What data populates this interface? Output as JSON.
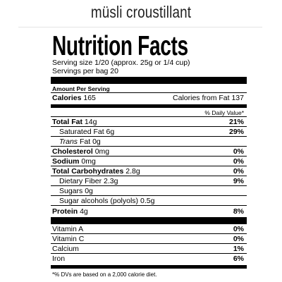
{
  "product": {
    "name": "müsli croustillant"
  },
  "label": {
    "title": "Nutrition Facts",
    "serving_size": "Serving size 1/20 (approx. 25g or 1/4 cup)",
    "servings_per": "Servings per bag 20",
    "amount_per_serving": "Amount Per Serving",
    "calories_label": "Calories",
    "calories_value": "165",
    "calories_from_fat": "Calories from Fat 137",
    "daily_value_header": "% Daily Value*",
    "total_fat": {
      "label": "Total Fat",
      "amount": "14g",
      "dv": "21%"
    },
    "saturated_fat": {
      "label": "Saturated Fat",
      "amount": "6g",
      "dv": "29%"
    },
    "trans_fat": {
      "label_italic": "Trans",
      "label": "Fat",
      "amount": "0g"
    },
    "cholesterol": {
      "label": "Cholesterol",
      "amount": "0mg",
      "dv": "0%"
    },
    "sodium": {
      "label": "Sodium",
      "amount": "0mg",
      "dv": "0%"
    },
    "total_carbs": {
      "label": "Total Carbohydrates",
      "amount": "2.8g",
      "dv": "0%"
    },
    "fiber": {
      "label": "Dietary Fiber",
      "amount": "2.3g",
      "dv": "9%"
    },
    "sugars": {
      "label": "Sugars",
      "amount": "0g"
    },
    "sugar_alcohols": {
      "label": "Sugar alcohols (polyols)",
      "amount": "0.5g"
    },
    "protein": {
      "label": "Protein",
      "amount": "4g",
      "dv": "8%"
    },
    "vitamin_a": {
      "label": "Vitamin A",
      "dv": "0%"
    },
    "vitamin_c": {
      "label": "Vitamin C",
      "dv": "0%"
    },
    "calcium": {
      "label": "Calcium",
      "dv": "1%"
    },
    "iron": {
      "label": "Iron",
      "dv": "6%"
    },
    "footnote": "*% DVs are based on a 2,000 calorie diet."
  }
}
